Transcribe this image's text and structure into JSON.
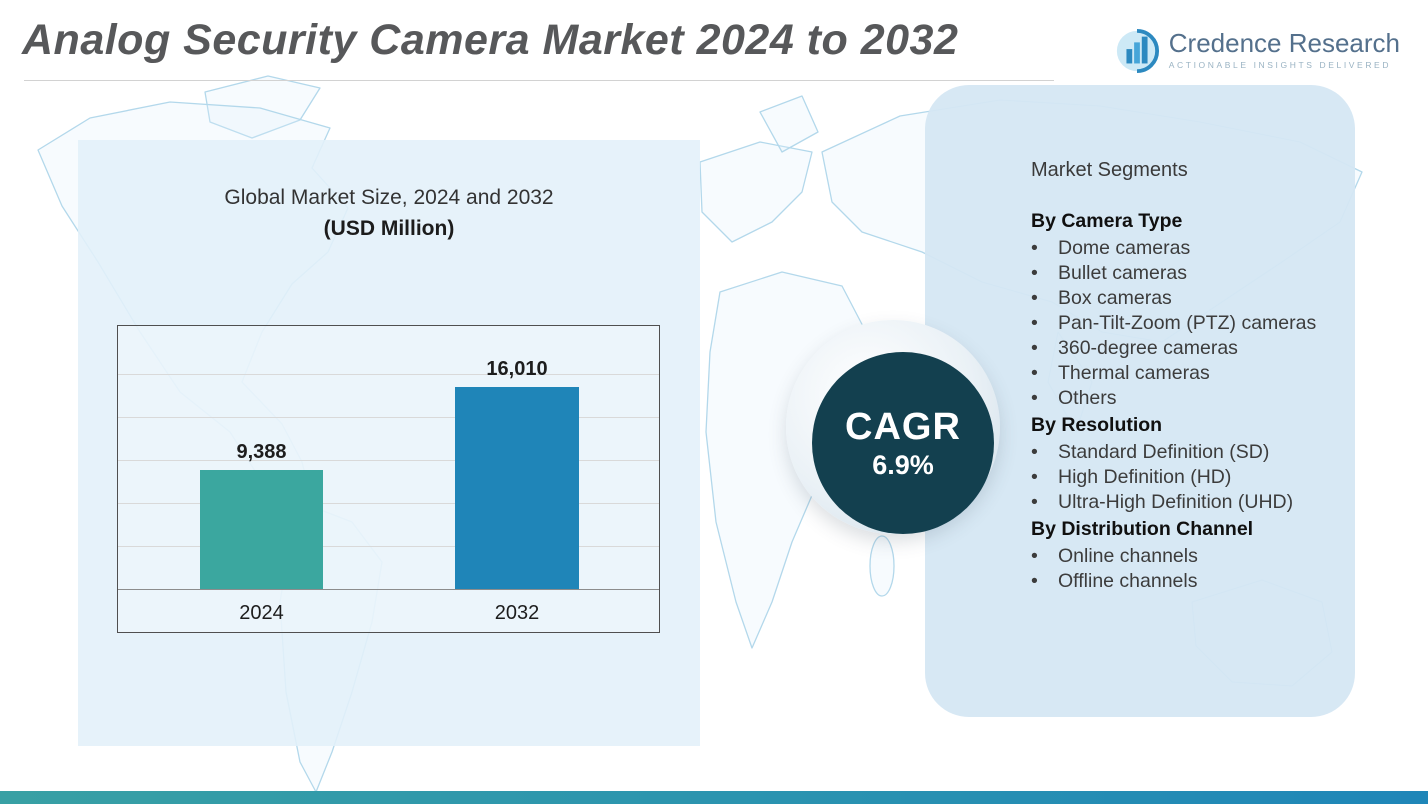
{
  "header": {
    "title": "Analog Security Camera Market 2024 to 2032",
    "logo": {
      "name": "Credence Research",
      "tagline": "ACTIONABLE INSIGHTS DELIVERED"
    }
  },
  "chart_data": {
    "type": "bar",
    "title": "Global Market Size, 2024 and 2032",
    "subtitle": "(USD Million)",
    "categories": [
      "2024",
      "2032"
    ],
    "values": [
      9388,
      16010
    ],
    "value_labels": [
      "9,388",
      "16,010"
    ],
    "bar_colors": [
      "#3BA79F",
      "#1F85B8"
    ],
    "xlabel": "",
    "ylabel": "",
    "ylim": [
      0,
      20000
    ],
    "grid": true,
    "legend": false
  },
  "cagr_badge": {
    "label": "CAGR",
    "value": "6.9%"
  },
  "segments_panel": {
    "heading": "Market Segments",
    "bullet": "•",
    "groups": [
      {
        "title": "By Camera Type",
        "items": [
          "Dome cameras",
          "Bullet cameras",
          "Box cameras",
          "Pan-Tilt-Zoom (PTZ) cameras",
          "360-degree cameras",
          "Thermal cameras",
          "Others"
        ]
      },
      {
        "title": "By Resolution",
        "items": [
          "Standard Definition (SD)",
          "High Definition (HD)",
          "Ultra-High Definition (UHD)"
        ]
      },
      {
        "title": "By Distribution Channel",
        "items": [
          "Online channels",
          "Offline channels"
        ]
      }
    ]
  },
  "colors": {
    "bar_2024": "#3BA79F",
    "bar_2032": "#1F85B8",
    "cagr_circle": "#13404F",
    "panel_blue": "#D5E7F3",
    "footer_teal": "#38A0A4",
    "footer_blue": "#1F86B8",
    "map_line": "#B3D8EB",
    "title_gray": "#57585A"
  }
}
